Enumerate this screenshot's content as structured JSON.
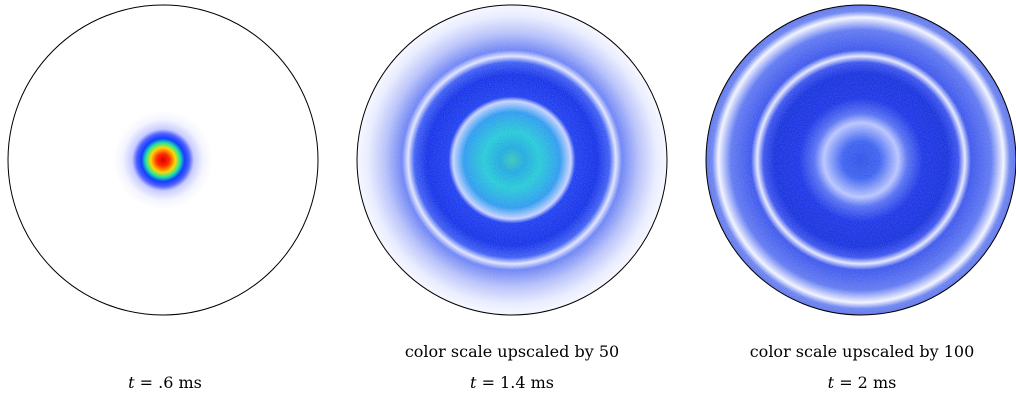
{
  "panels": [
    {
      "note": "",
      "time_var": "t",
      "time_value": "= .6 ms",
      "palette": "early",
      "field": [
        {
          "r": 0.0,
          "color": "#d90000"
        },
        {
          "r": 0.04,
          "color": "#ff2a00"
        },
        {
          "r": 0.08,
          "color": "#ffd800"
        },
        {
          "r": 0.11,
          "color": "#22e8a0"
        },
        {
          "r": 0.14,
          "color": "#1040ff"
        },
        {
          "r": 0.17,
          "color": "#5060ff"
        },
        {
          "r": 0.2,
          "color": "#c8ccff"
        },
        {
          "r": 0.26,
          "color": "#f3f4ff"
        },
        {
          "r": 0.32,
          "color": "#ffffff"
        },
        {
          "r": 1.0,
          "color": "#ffffff"
        }
      ]
    },
    {
      "note": "color scale upscaled by 50",
      "time_var": "t",
      "time_value": "= 1.4 ms",
      "palette": "middle",
      "field": [
        {
          "r": 0.0,
          "color": "#39c7b8"
        },
        {
          "r": 0.08,
          "color": "#1ea8e0"
        },
        {
          "r": 0.18,
          "color": "#24c9d8"
        },
        {
          "r": 0.31,
          "color": "#2c9af0"
        },
        {
          "r": 0.38,
          "color": "#c6d2ff"
        },
        {
          "r": 0.41,
          "color": "#1d3ef0"
        },
        {
          "r": 0.55,
          "color": "#1330e8"
        },
        {
          "r": 0.63,
          "color": "#3d5df4"
        },
        {
          "r": 0.67,
          "color": "#dfe4ff"
        },
        {
          "r": 0.71,
          "color": "#6b82f5"
        },
        {
          "r": 0.82,
          "color": "#b7c1fa"
        },
        {
          "r": 0.93,
          "color": "#e8ecfe"
        },
        {
          "r": 1.0,
          "color": "#f6f7ff"
        }
      ]
    },
    {
      "note": "color scale upscaled by 100",
      "time_var": "t",
      "time_value": "= 2 ms",
      "palette": "late",
      "field": [
        {
          "r": 0.0,
          "color": "#2e4fe8"
        },
        {
          "r": 0.12,
          "color": "#3a60f0"
        },
        {
          "r": 0.24,
          "color": "#b8c4ff"
        },
        {
          "r": 0.3,
          "color": "#5570f2"
        },
        {
          "r": 0.4,
          "color": "#1a33e6"
        },
        {
          "r": 0.56,
          "color": "#1530dd"
        },
        {
          "r": 0.63,
          "color": "#3a52ee"
        },
        {
          "r": 0.67,
          "color": "#e4e8ff"
        },
        {
          "r": 0.71,
          "color": "#3b55ec"
        },
        {
          "r": 0.84,
          "color": "#5f78f2"
        },
        {
          "r": 0.92,
          "color": "#f2f4ff"
        },
        {
          "r": 0.96,
          "color": "#6c83f0"
        },
        {
          "r": 1.0,
          "color": "#5d74ea"
        }
      ]
    }
  ]
}
